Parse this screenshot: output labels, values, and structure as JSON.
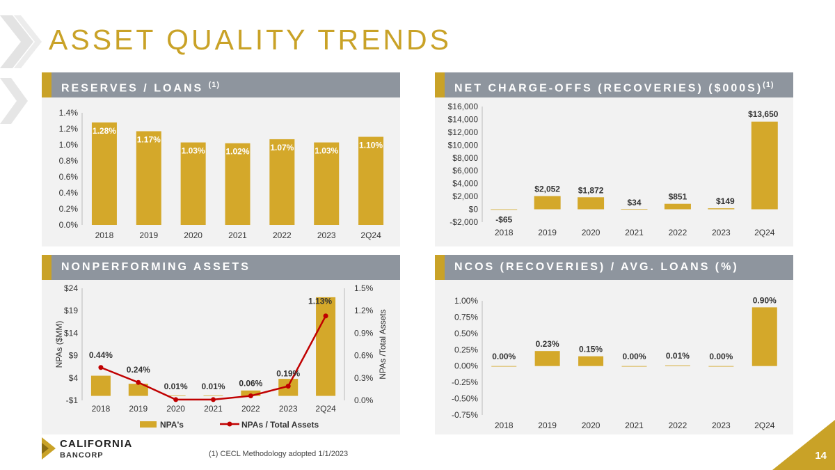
{
  "title": "ASSET QUALITY TRENDS",
  "page_number": "14",
  "footnote": "(1)    CECL Methodology adopted 1/1/2023",
  "logo": {
    "line1": "CALIFORNIA",
    "line2": "BANCORP"
  },
  "colors": {
    "gold": "#c9a227",
    "bar": "#d4a82a",
    "header_gray": "#8e959e",
    "line_red": "#c00000",
    "panel_bg": "#f2f2f2"
  },
  "panels": {
    "reserves": {
      "title": "RESERVES / LOANS",
      "sup": "(1)"
    },
    "nco": {
      "title": "NET CHARGE-OFFS (RECOVERIES) ($000S)",
      "sup": "(1)"
    },
    "npa": {
      "title": "NONPERFORMING ASSETS"
    },
    "ncos_ratio": {
      "title": "NCOS (RECOVERIES) / AVG. LOANS (%)"
    }
  },
  "chart_data": [
    {
      "id": "reserves",
      "type": "bar",
      "title": "RESERVES / LOANS",
      "categories": [
        "2018",
        "2019",
        "2020",
        "2021",
        "2022",
        "2023",
        "2Q24"
      ],
      "values": [
        1.28,
        1.17,
        1.03,
        1.02,
        1.07,
        1.03,
        1.1
      ],
      "labels": [
        "1.28%",
        "1.17%",
        "1.03%",
        "1.02%",
        "1.07%",
        "1.03%",
        "1.10%"
      ],
      "ylim": [
        0,
        1.4
      ],
      "yticks": [
        0,
        0.2,
        0.4,
        0.6,
        0.8,
        1.0,
        1.2,
        1.4
      ],
      "ytick_labels": [
        "0.0%",
        "0.2%",
        "0.4%",
        "0.6%",
        "0.8%",
        "1.0%",
        "1.2%",
        "1.4%"
      ]
    },
    {
      "id": "nco",
      "type": "bar",
      "title": "NET CHARGE-OFFS (RECOVERIES) ($000S)",
      "categories": [
        "2018",
        "2019",
        "2020",
        "2021",
        "2022",
        "2023",
        "2Q24"
      ],
      "values": [
        -65,
        2052,
        1872,
        34,
        851,
        149,
        13650
      ],
      "labels": [
        "-$65",
        "$2,052",
        "$1,872",
        "$34",
        "$851",
        "$149",
        "$13,650"
      ],
      "ylim": [
        -2000,
        16000
      ],
      "yticks": [
        -2000,
        0,
        2000,
        4000,
        6000,
        8000,
        10000,
        12000,
        14000,
        16000
      ],
      "ytick_labels": [
        "-$2,000",
        "$0",
        "$2,000",
        "$4,000",
        "$6,000",
        "$8,000",
        "$10,000",
        "$12,000",
        "$14,000",
        "$16,000"
      ]
    },
    {
      "id": "npa",
      "type": "bar+line",
      "title": "NONPERFORMING ASSETS",
      "categories": [
        "2018",
        "2019",
        "2020",
        "2021",
        "2022",
        "2023",
        "2Q24"
      ],
      "series": [
        {
          "name": "NPA's",
          "type": "bar",
          "axis": "left",
          "values": [
            4.5,
            2.7,
            0.1,
            0.1,
            1.2,
            3.8,
            22.0
          ]
        },
        {
          "name": "NPAs / Total Assets",
          "type": "line",
          "axis": "right",
          "values": [
            0.44,
            0.24,
            0.01,
            0.01,
            0.06,
            0.19,
            1.13
          ],
          "labels": [
            "0.44%",
            "0.24%",
            "0.01%",
            "0.01%",
            "0.06%",
            "0.19%",
            "1.13%"
          ]
        }
      ],
      "ylim_left": [
        -1,
        24
      ],
      "yticks_left": [
        -1,
        4,
        9,
        14,
        19,
        24
      ],
      "ytick_labels_left": [
        "-$1",
        "$4",
        "$9",
        "$14",
        "$19",
        "$24"
      ],
      "ylim_right": [
        0,
        1.5
      ],
      "yticks_right": [
        0,
        0.3,
        0.6,
        0.9,
        1.2,
        1.5
      ],
      "ytick_labels_right": [
        "0.0%",
        "0.3%",
        "0.6%",
        "0.9%",
        "1.2%",
        "1.5%"
      ],
      "ylabel_left": "NPAs ($MM)",
      "ylabel_right": "NPAs /Total Assets",
      "legend": "bottom"
    },
    {
      "id": "ncos_ratio",
      "type": "bar",
      "title": "NCOS (RECOVERIES) / AVG. LOANS (%)",
      "categories": [
        "2018",
        "2019",
        "2020",
        "2021",
        "2022",
        "2023",
        "2Q24"
      ],
      "values": [
        0.0,
        0.23,
        0.15,
        0.0,
        0.01,
        0.0,
        0.9
      ],
      "labels": [
        "0.00%",
        "0.23%",
        "0.15%",
        "0.00%",
        "0.01%",
        "0.00%",
        "0.90%"
      ],
      "ylim": [
        -0.75,
        1.0
      ],
      "yticks": [
        -0.75,
        -0.5,
        -0.25,
        0,
        0.25,
        0.5,
        0.75,
        1.0
      ],
      "ytick_labels": [
        "-0.75%",
        "-0.50%",
        "-0.25%",
        "0.00%",
        "0.25%",
        "0.50%",
        "0.75%",
        "1.00%"
      ]
    }
  ]
}
